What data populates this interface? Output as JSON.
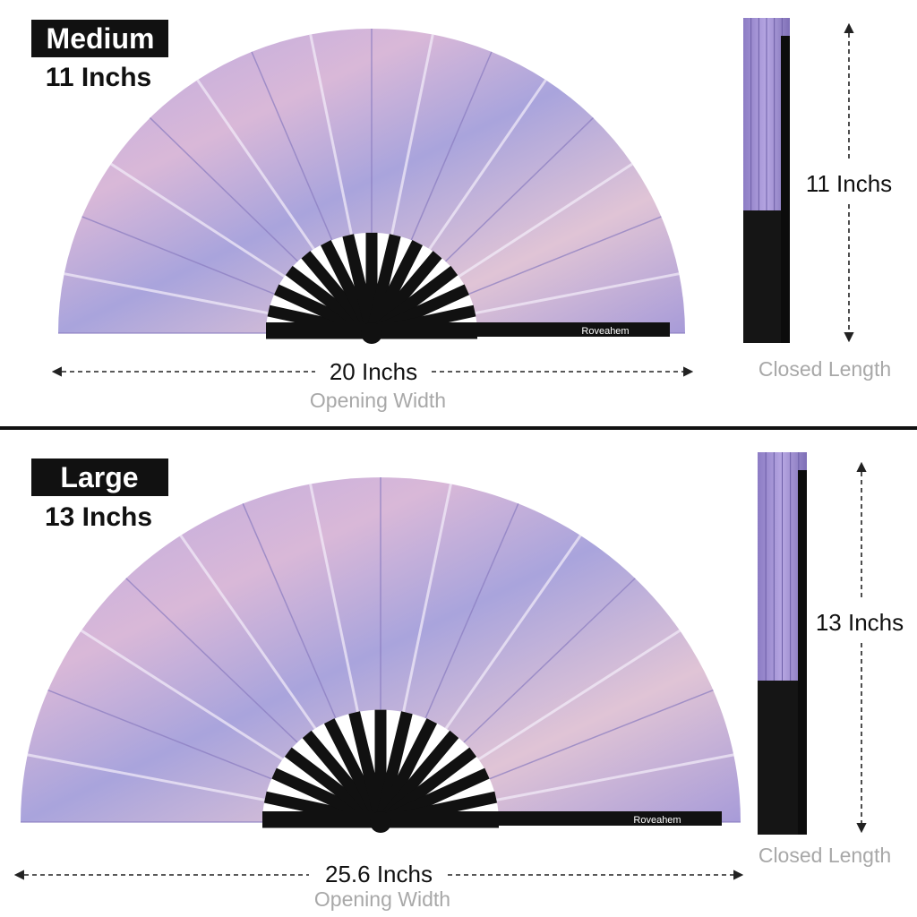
{
  "sections": [
    {
      "badge": "Medium",
      "size": "11 Inchs",
      "width": "20 Inchs",
      "width_caption": "Opening Width",
      "closed": "11 Inchs",
      "closed_caption": "Closed Length",
      "brand": "Roveahem"
    },
    {
      "badge": "Large",
      "size": "13 Inchs",
      "width": "25.6 Inchs",
      "width_caption": "Opening Width",
      "closed": "13 Inchs",
      "closed_caption": "Closed Length",
      "brand": "Roveahem"
    }
  ]
}
